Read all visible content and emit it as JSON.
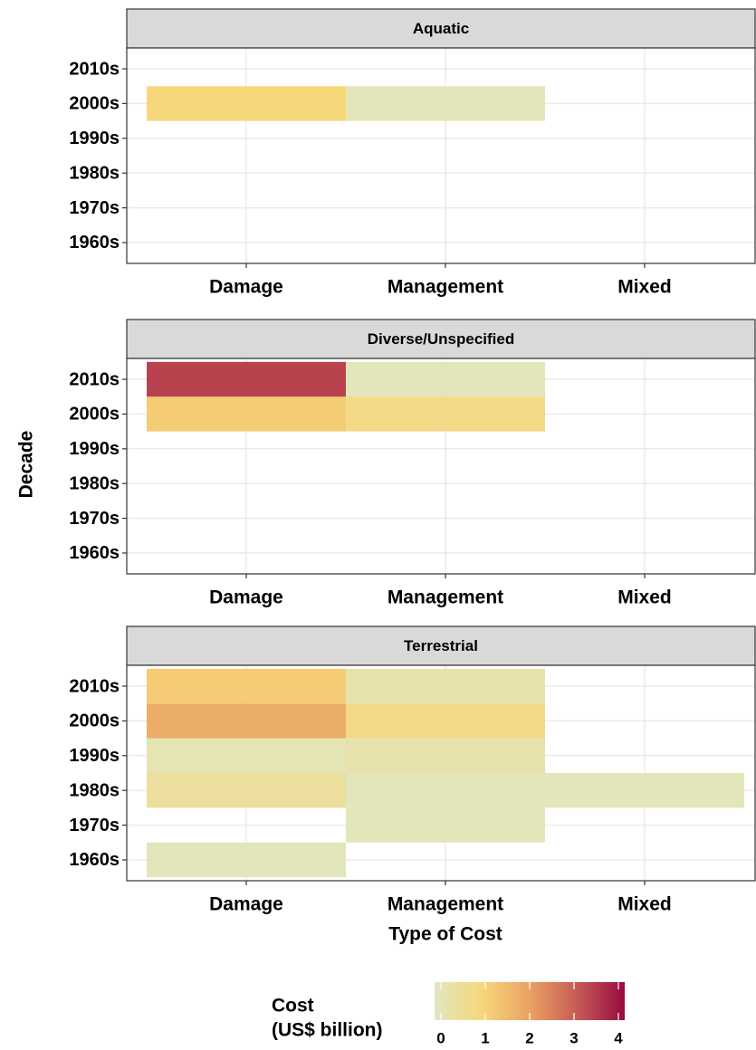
{
  "chart_data": {
    "type": "heatmap",
    "x_label": "Type of Cost",
    "y_label": "Decade",
    "categories": [
      "Damage",
      "Management",
      "Mixed"
    ],
    "y_categories": [
      "1960s",
      "1970s",
      "1980s",
      "1990s",
      "2000s",
      "2010s"
    ],
    "facets": [
      {
        "title": "Aquatic",
        "values": [
          [
            null,
            null,
            null
          ],
          [
            null,
            null,
            null
          ],
          [
            null,
            null,
            null
          ],
          [
            null,
            null,
            null
          ],
          [
            1.0,
            0.1,
            null
          ],
          [
            null,
            null,
            null
          ]
        ]
      },
      {
        "title": "Diverse/Unspecified",
        "values": [
          [
            null,
            null,
            null
          ],
          [
            null,
            null,
            null
          ],
          [
            null,
            null,
            null
          ],
          [
            null,
            null,
            null
          ],
          [
            1.2,
            0.8,
            null
          ],
          [
            3.3,
            0.1,
            null
          ]
        ]
      },
      {
        "title": "Terrestrial",
        "values": [
          [
            0.1,
            null,
            null
          ],
          [
            null,
            0.1,
            null
          ],
          [
            0.5,
            0.1,
            0.1
          ],
          [
            0.2,
            0.3,
            null
          ],
          [
            1.8,
            0.8,
            null
          ],
          [
            1.2,
            0.3,
            null
          ]
        ]
      }
    ],
    "colorbar": {
      "title": [
        "Cost",
        "(US$ billion)"
      ],
      "lim": [
        0,
        4
      ],
      "ticks": [
        0,
        1,
        2,
        3,
        4
      ],
      "colors": [
        "#e1e7c1",
        "#f6d77a",
        "#eaa263",
        "#c65b56",
        "#980a3f"
      ]
    },
    "grid": true
  }
}
